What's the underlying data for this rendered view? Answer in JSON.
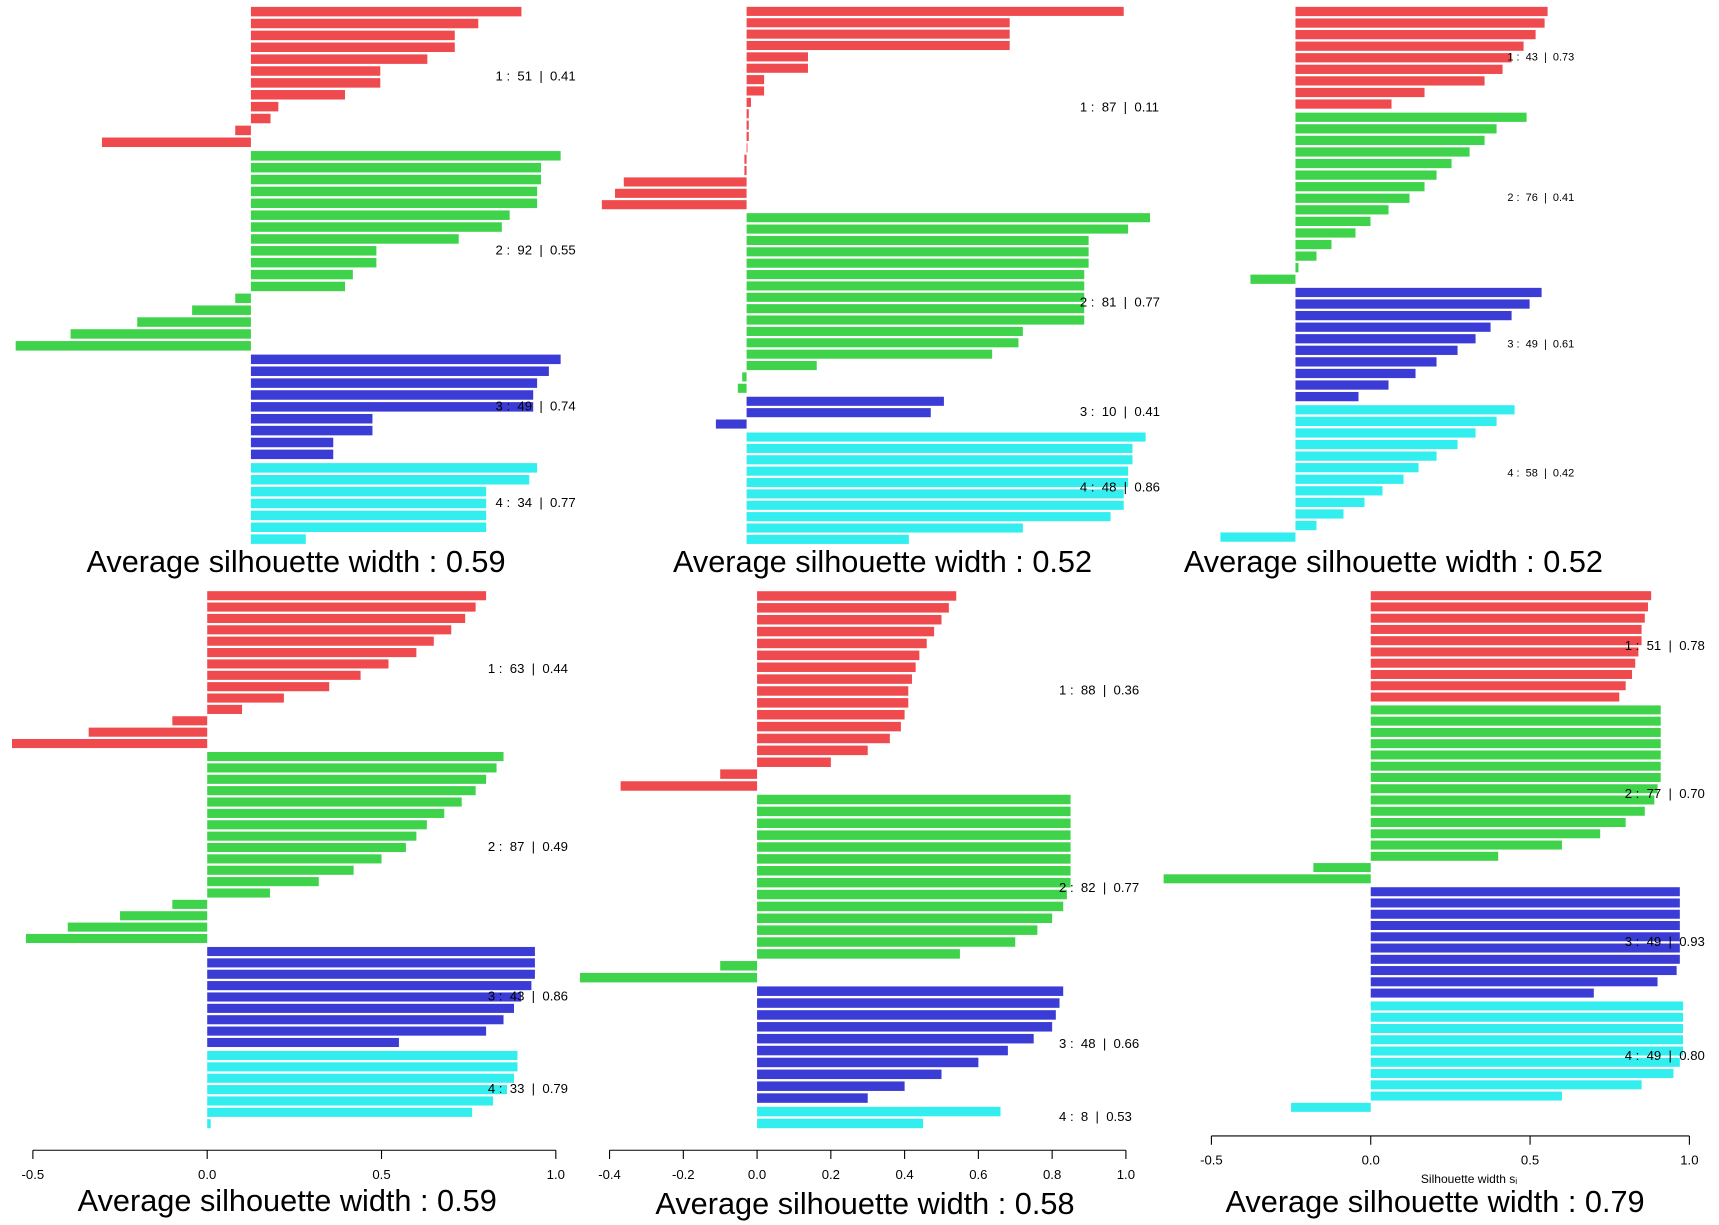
{
  "chart_data": [
    {
      "type": "bar",
      "title": "Average silhouette width : 0.59",
      "xlim": [
        -0.64,
        0.87
      ],
      "series": [
        {
          "name": "1 :  51  |  0.41",
          "color": "#ef4b4f",
          "values": [
            0.69,
            0.58,
            0.52,
            0.52,
            0.45,
            0.33,
            0.33,
            0.24,
            0.07,
            0.05,
            -0.04,
            -0.38
          ]
        },
        {
          "name": "2 :  92  |  0.55",
          "color": "#3ed34a",
          "values": [
            0.79,
            0.74,
            0.74,
            0.73,
            0.73,
            0.66,
            0.64,
            0.53,
            0.32,
            0.32,
            0.26,
            0.24,
            -0.04,
            -0.15,
            -0.29,
            -0.46,
            -0.6
          ]
        },
        {
          "name": "3 :  49  |  0.74",
          "color": "#3b3bd6",
          "values": [
            0.79,
            0.76,
            0.73,
            0.72,
            0.72,
            0.31,
            0.31,
            0.21,
            0.21
          ]
        },
        {
          "name": "4 :  34  |  0.77",
          "color": "#33eeee",
          "values": [
            0.73,
            0.71,
            0.6,
            0.6,
            0.6,
            0.6,
            0.14
          ]
        }
      ]
    },
    {
      "type": "bar",
      "title": "Average silhouette width : 0.52",
      "xlim": [
        -0.34,
        0.96
      ],
      "series": [
        {
          "name": "1 :  87  |  0.11",
          "color": "#ef4b4f",
          "values": [
            0.86,
            0.6,
            0.6,
            0.6,
            0.14,
            0.14,
            0.04,
            0.04,
            0.01,
            0.005,
            0.005,
            0.005,
            0.002,
            -0.005,
            -0.005,
            -0.28,
            -0.3,
            -0.33
          ]
        },
        {
          "name": "2 :  81  |  0.77",
          "color": "#3ed34a",
          "values": [
            0.92,
            0.87,
            0.78,
            0.78,
            0.78,
            0.77,
            0.77,
            0.77,
            0.77,
            0.77,
            0.63,
            0.62,
            0.56,
            0.16,
            -0.01,
            -0.02
          ]
        },
        {
          "name": "3 :  10  |  0.41",
          "color": "#3b3bd6",
          "values": [
            0.45,
            0.42,
            -0.07
          ]
        },
        {
          "name": "4 :  48  |  0.86",
          "color": "#33eeee",
          "values": [
            0.91,
            0.88,
            0.88,
            0.87,
            0.87,
            0.86,
            0.86,
            0.83,
            0.63,
            0.37
          ]
        }
      ]
    },
    {
      "type": "bar",
      "title": "Average silhouette width : 0.52",
      "xlim": [
        -0.28,
        1.4
      ],
      "series": [
        {
          "name": "1 :  43  |  0.73",
          "color": "#ef4b4f",
          "values": [
            0.84,
            0.83,
            0.8,
            0.76,
            0.72,
            0.69,
            0.63,
            0.43,
            0.32
          ]
        },
        {
          "name": "2 :  76  |  0.41",
          "color": "#3ed34a",
          "values": [
            0.77,
            0.67,
            0.63,
            0.58,
            0.52,
            0.47,
            0.43,
            0.38,
            0.31,
            0.25,
            0.2,
            0.12,
            0.07,
            0.01,
            -0.15
          ]
        },
        {
          "name": "3 :  49  |  0.61",
          "color": "#3b3bd6",
          "values": [
            0.82,
            0.78,
            0.72,
            0.65,
            0.6,
            0.54,
            0.47,
            0.4,
            0.31,
            0.21
          ]
        },
        {
          "name": "4 :  58  |  0.42",
          "color": "#33eeee",
          "values": [
            0.73,
            0.67,
            0.6,
            0.54,
            0.47,
            0.41,
            0.36,
            0.29,
            0.23,
            0.16,
            0.07,
            -0.25
          ]
        }
      ]
    },
    {
      "type": "bar",
      "title": "Average silhouette width : 0.59",
      "xlim": [
        -0.5,
        1.0
      ],
      "xticks": [
        -0.5,
        {
          "value": 0,
          "label": "0.0"
        },
        0.5,
        {
          "value": 1,
          "label": "1.0"
        }
      ],
      "series": [
        {
          "name": "1 :  63  |  0.44",
          "color": "#ef4b4f",
          "values": [
            0.8,
            0.77,
            0.74,
            0.7,
            0.65,
            0.6,
            0.52,
            0.44,
            0.35,
            0.22,
            0.1,
            -0.1,
            -0.34,
            -0.56
          ]
        },
        {
          "name": "2 :  87  |  0.49",
          "color": "#3ed34a",
          "values": [
            0.85,
            0.83,
            0.8,
            0.77,
            0.73,
            0.68,
            0.63,
            0.6,
            0.57,
            0.5,
            0.42,
            0.32,
            0.18,
            -0.1,
            -0.25,
            -0.4,
            -0.52
          ]
        },
        {
          "name": "3 :  43  |  0.86",
          "color": "#3b3bd6",
          "values": [
            0.94,
            0.94,
            0.94,
            0.93,
            0.9,
            0.88,
            0.85,
            0.8,
            0.55
          ]
        },
        {
          "name": "4 :  33  |  0.79",
          "color": "#33eeee",
          "values": [
            0.89,
            0.89,
            0.88,
            0.86,
            0.82,
            0.76,
            0.01
          ]
        }
      ]
    },
    {
      "type": "bar",
      "title": "Average silhouette width : 0.58",
      "xlim": [
        -0.4,
        1.0
      ],
      "xticks": [
        -0.4,
        -0.2,
        {
          "value": 0,
          "label": "0.0"
        },
        0.2,
        0.4,
        0.6,
        0.8,
        {
          "value": 1,
          "label": "1.0"
        }
      ],
      "series": [
        {
          "name": "1 :  88  |  0.36",
          "color": "#ef4b4f",
          "values": [
            0.54,
            0.52,
            0.5,
            0.48,
            0.46,
            0.44,
            0.43,
            0.42,
            0.41,
            0.41,
            0.4,
            0.39,
            0.36,
            0.3,
            0.2,
            -0.1,
            -0.37
          ]
        },
        {
          "name": "2 :  82  |  0.77",
          "color": "#3ed34a",
          "values": [
            0.85,
            0.85,
            0.85,
            0.85,
            0.85,
            0.85,
            0.85,
            0.85,
            0.84,
            0.83,
            0.8,
            0.76,
            0.7,
            0.55,
            -0.1,
            -0.48
          ]
        },
        {
          "name": "3 :  48  |  0.66",
          "color": "#3b3bd6",
          "values": [
            0.83,
            0.82,
            0.81,
            0.8,
            0.75,
            0.68,
            0.6,
            0.5,
            0.4,
            0.3
          ]
        },
        {
          "name": "4 :  8  |  0.53",
          "color": "#33eeee",
          "values": [
            0.66,
            0.45
          ]
        }
      ]
    },
    {
      "type": "bar",
      "title": "Average silhouette width : 0.79",
      "xlim": [
        -0.5,
        1.0
      ],
      "xlabel": "Silhouette width sᵢ",
      "xticks": [
        -0.5,
        {
          "value": 0,
          "label": "0.0"
        },
        0.5,
        {
          "value": 1,
          "label": "1.0"
        }
      ],
      "series": [
        {
          "name": "1 :  51  |  0.78",
          "color": "#ef4b4f",
          "values": [
            0.88,
            0.87,
            0.86,
            0.85,
            0.85,
            0.84,
            0.83,
            0.82,
            0.8,
            0.78
          ]
        },
        {
          "name": "2 :  77  |  0.70",
          "color": "#3ed34a",
          "values": [
            0.91,
            0.91,
            0.91,
            0.91,
            0.91,
            0.91,
            0.91,
            0.9,
            0.89,
            0.86,
            0.8,
            0.72,
            0.6,
            0.4,
            -0.18,
            -0.65
          ]
        },
        {
          "name": "3 :  49  |  0.93",
          "color": "#3b3bd6",
          "values": [
            0.97,
            0.97,
            0.97,
            0.97,
            0.97,
            0.97,
            0.97,
            0.96,
            0.9,
            0.7
          ]
        },
        {
          "name": "4 :  49  |  0.80",
          "color": "#33eeee",
          "values": [
            0.98,
            0.98,
            0.98,
            0.98,
            0.98,
            0.97,
            0.95,
            0.85,
            0.6,
            -0.25
          ]
        }
      ]
    }
  ]
}
